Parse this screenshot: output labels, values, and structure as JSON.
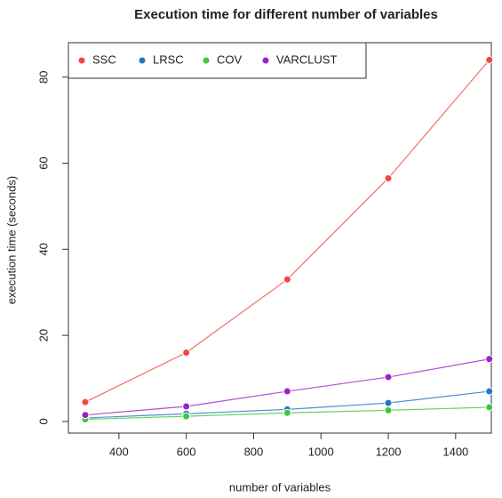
{
  "chart_data": {
    "type": "line",
    "title": "Execution time for different number of variables",
    "x_label": "number of variables",
    "y_label": "execution time (seconds)",
    "x": [
      300,
      600,
      900,
      1200,
      1500
    ],
    "series": [
      {
        "name": "SSC",
        "color": "#f0483e",
        "values": [
          4.5,
          16,
          33,
          56.5,
          84
        ]
      },
      {
        "name": "LRSC",
        "color": "#1f78c8",
        "values": [
          0.8,
          1.8,
          2.8,
          4.3,
          7
        ]
      },
      {
        "name": "COV",
        "color": "#3cc83c",
        "values": [
          0.5,
          1.2,
          2,
          2.6,
          3.3
        ]
      },
      {
        "name": "VARCLUST",
        "color": "#a020c8",
        "values": [
          1.5,
          3.5,
          7,
          10.3,
          14.5
        ]
      }
    ],
    "xlim": [
      250,
      1506
    ],
    "xticks": [
      400,
      600,
      800,
      1000,
      1200,
      1400
    ],
    "ylim": [
      -2.7,
      88
    ],
    "yticks": [
      0,
      20,
      40,
      60,
      80
    ],
    "legend": "top-left",
    "grid": false
  }
}
